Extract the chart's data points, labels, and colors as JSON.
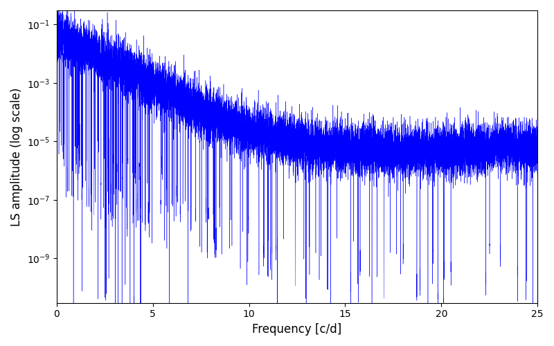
{
  "xlabel": "Frequency [c/d]",
  "ylabel": "LS amplitude (log scale)",
  "xlim": [
    0,
    25
  ],
  "ylim_log": [
    3e-11,
    0.3
  ],
  "line_color": "#0000ff",
  "line_width": 0.3,
  "figsize": [
    8.0,
    5.0
  ],
  "dpi": 100,
  "freq_max": 25.0,
  "n_points": 15000,
  "seed": 7
}
